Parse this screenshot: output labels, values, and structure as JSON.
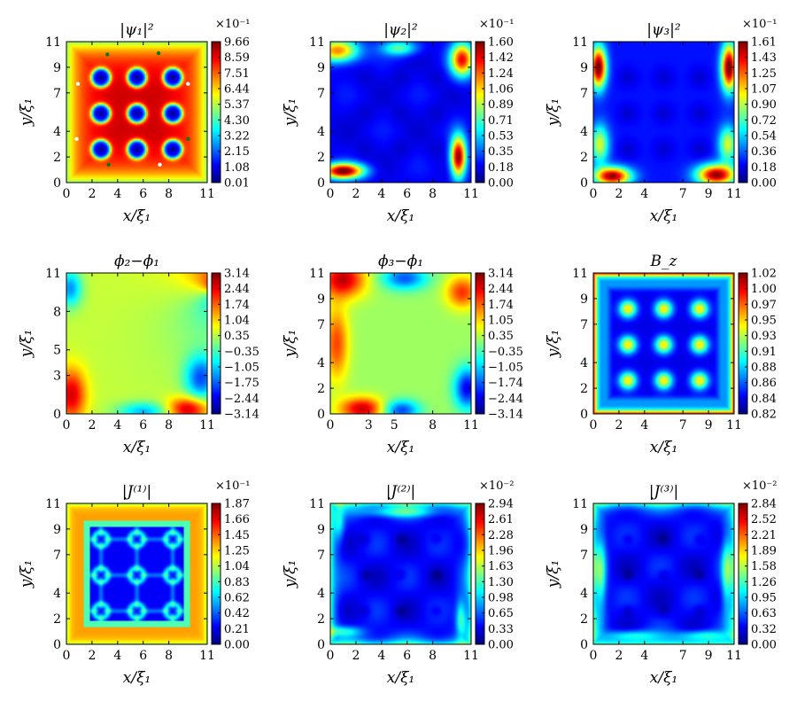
{
  "chart_data": [
    {
      "type": "heatmap",
      "title": "|ψ₁|²",
      "exponent": "×10⁻¹",
      "xlabel": "x/ξ₁",
      "ylabel": "y/ξ₁",
      "xticks": [
        "0",
        "2",
        "4",
        "6",
        "8",
        "11"
      ],
      "yticks": [
        "0",
        "2",
        "4",
        "7",
        "9",
        "11"
      ],
      "xlim": [
        0,
        11
      ],
      "ylim": [
        0,
        11
      ],
      "colorbar_ticks": [
        "9.66",
        "8.59",
        "7.51",
        "6.44",
        "5.37",
        "4.30",
        "3.22",
        "2.15",
        "1.08",
        "0.01"
      ],
      "pattern": "psi1"
    },
    {
      "type": "heatmap",
      "title": "|ψ₂|²",
      "exponent": "×10⁻¹",
      "xlabel": "x/ξ₁",
      "ylabel": "y/ξ₁",
      "xticks": [
        "0",
        "2",
        "4",
        "6",
        "8",
        "11"
      ],
      "yticks": [
        "0",
        "2",
        "4",
        "7",
        "9",
        "11"
      ],
      "xlim": [
        0,
        11
      ],
      "ylim": [
        0,
        11
      ],
      "colorbar_ticks": [
        "1.60",
        "1.42",
        "1.24",
        "1.06",
        "0.89",
        "0.71",
        "0.53",
        "0.35",
        "0.18",
        "0.00"
      ],
      "pattern": "psi2"
    },
    {
      "type": "heatmap",
      "title": "|ψ₃|²",
      "exponent": "×10⁻¹",
      "xlabel": "x/ξ₁",
      "ylabel": "y/ξ₁",
      "xticks": [
        "0",
        "2",
        "4",
        "7",
        "9",
        "11"
      ],
      "yticks": [
        "0",
        "2",
        "4",
        "7",
        "9",
        "11"
      ],
      "xlim": [
        0,
        11
      ],
      "ylim": [
        0,
        11
      ],
      "colorbar_ticks": [
        "1.61",
        "1.43",
        "1.25",
        "1.07",
        "0.90",
        "0.72",
        "0.54",
        "0.36",
        "0.18",
        "0.00"
      ],
      "pattern": "psi3"
    },
    {
      "type": "heatmap",
      "title": "ϕ₂−ϕ₁",
      "exponent": "",
      "xlabel": "x/ξ₁",
      "ylabel": "y/ξ₁",
      "xticks": [
        "0",
        "2",
        "4",
        "6",
        "8",
        "11"
      ],
      "yticks": [
        "0",
        "3",
        "5",
        "8",
        "11"
      ],
      "xlim": [
        0,
        11
      ],
      "ylim": [
        0,
        11
      ],
      "colorbar_ticks": [
        "3.14",
        "2.44",
        "1.74",
        "1.04",
        "0.35",
        "−0.35",
        "−1.05",
        "−1.75",
        "−2.44",
        "−3.14"
      ],
      "pattern": "phi21"
    },
    {
      "type": "heatmap",
      "title": "ϕ₃−ϕ₁",
      "exponent": "",
      "xlabel": "x/ξ₁",
      "ylabel": "y/ξ₁",
      "xticks": [
        "0",
        "3",
        "5",
        "8",
        "11"
      ],
      "yticks": [
        "0",
        "2",
        "4",
        "7",
        "9",
        "11"
      ],
      "xlim": [
        0,
        11
      ],
      "ylim": [
        0,
        11
      ],
      "colorbar_ticks": [
        "3.14",
        "2.44",
        "1.74",
        "1.05",
        "0.35",
        "−0.35",
        "−1.05",
        "−1.74",
        "−2.44",
        "−3.14"
      ],
      "pattern": "phi31"
    },
    {
      "type": "heatmap",
      "title": "B_z",
      "exponent": "",
      "xlabel": "x/ξ₁",
      "ylabel": "y/ξ₁",
      "xticks": [
        "0",
        "2",
        "4",
        "7",
        "9",
        "11"
      ],
      "yticks": [
        "0",
        "2",
        "4",
        "7",
        "9",
        "11"
      ],
      "xlim": [
        0,
        11
      ],
      "ylim": [
        0,
        11
      ],
      "colorbar_ticks": [
        "1.02",
        "1.00",
        "0.97",
        "0.95",
        "0.93",
        "0.91",
        "0.88",
        "0.86",
        "0.84",
        "0.82"
      ],
      "pattern": "bz"
    },
    {
      "type": "heatmap",
      "title": "|J⁽¹⁾|",
      "exponent": "×10⁻¹",
      "xlabel": "x/ξ₁",
      "ylabel": "y/ξ₁",
      "xticks": [
        "0",
        "2",
        "4",
        "6",
        "8",
        "11"
      ],
      "yticks": [
        "0",
        "2",
        "4",
        "7",
        "9",
        "11"
      ],
      "xlim": [
        0,
        11
      ],
      "ylim": [
        0,
        11
      ],
      "colorbar_ticks": [
        "1.87",
        "1.66",
        "1.45",
        "1.25",
        "1.04",
        "0.83",
        "0.62",
        "0.42",
        "0.21",
        "0.00"
      ],
      "pattern": "j1"
    },
    {
      "type": "heatmap",
      "title": "|J⁽²⁾|",
      "exponent": "×10⁻²",
      "xlabel": "x/ξ₁",
      "ylabel": "y/ξ₁",
      "xticks": [
        "0",
        "2",
        "4",
        "6",
        "8",
        "11"
      ],
      "yticks": [
        "0",
        "2",
        "4",
        "7",
        "9",
        "11"
      ],
      "xlim": [
        0,
        11
      ],
      "ylim": [
        0,
        11
      ],
      "colorbar_ticks": [
        "2.94",
        "2.61",
        "2.28",
        "1.96",
        "1.63",
        "1.30",
        "0.98",
        "0.65",
        "0.33",
        "0.00"
      ],
      "pattern": "j2"
    },
    {
      "type": "heatmap",
      "title": "|J⁽³⁾|",
      "exponent": "×10⁻²",
      "xlabel": "x/ξ₁",
      "ylabel": "y/ξ₁",
      "xticks": [
        "0",
        "2",
        "4",
        "7",
        "9",
        "11"
      ],
      "yticks": [
        "0",
        "2",
        "4",
        "7",
        "9",
        "11"
      ],
      "xlim": [
        0,
        11
      ],
      "ylim": [
        0,
        11
      ],
      "colorbar_ticks": [
        "2.84",
        "2.52",
        "2.21",
        "1.89",
        "1.58",
        "1.26",
        "0.95",
        "0.63",
        "0.32",
        "0.00"
      ],
      "pattern": "j3"
    }
  ]
}
